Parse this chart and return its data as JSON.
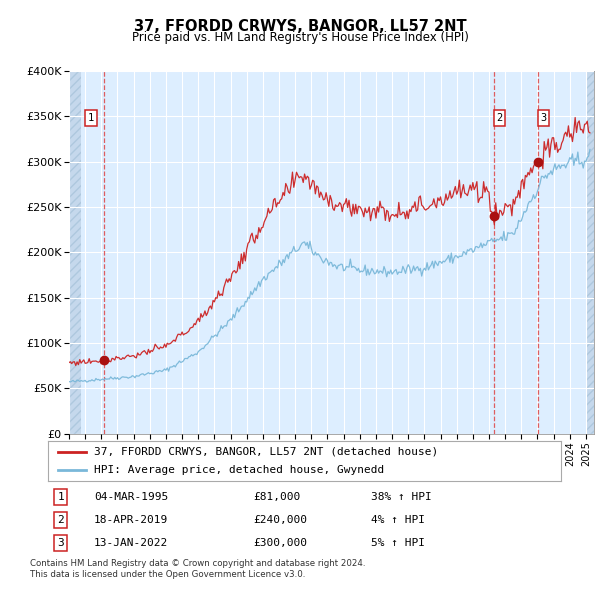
{
  "title": "37, FFORDD CRWYS, BANGOR, LL57 2NT",
  "subtitle": "Price paid vs. HM Land Registry's House Price Index (HPI)",
  "legend_line1": "37, FFORDD CRWYS, BANGOR, LL57 2NT (detached house)",
  "legend_line2": "HPI: Average price, detached house, Gwynedd",
  "footer1": "Contains HM Land Registry data © Crown copyright and database right 2024.",
  "footer2": "This data is licensed under the Open Government Licence v3.0.",
  "transactions": [
    {
      "num": 1,
      "date": "04-MAR-1995",
      "price": 81000,
      "pct": "38%",
      "dir": "↑"
    },
    {
      "num": 2,
      "date": "18-APR-2019",
      "price": 240000,
      "pct": "4%",
      "dir": "↑"
    },
    {
      "num": 3,
      "date": "13-JAN-2022",
      "price": 300000,
      "pct": "5%",
      "dir": "↑"
    }
  ],
  "transaction_dates_decimal": [
    1995.17,
    2019.29,
    2022.04
  ],
  "transaction_prices": [
    81000,
    240000,
    300000
  ],
  "hpi_line_color": "#7ab8d9",
  "price_line_color": "#cc2222",
  "dot_color": "#aa1111",
  "vline_color": "#dd4444",
  "bg_color": "#ddeeff",
  "grid_color": "#ffffff",
  "ylim": [
    0,
    400000
  ],
  "yticks": [
    0,
    50000,
    100000,
    150000,
    200000,
    250000,
    300000,
    350000,
    400000
  ],
  "ytick_labels": [
    "£0",
    "£50K",
    "£100K",
    "£150K",
    "£200K",
    "£250K",
    "£300K",
    "£350K",
    "£400K"
  ],
  "xlim_start": 1993.0,
  "xlim_end": 2025.5,
  "hpi_milestones": {
    "1993.0": 57000,
    "1995.0": 60000,
    "1997.0": 63000,
    "1999.0": 70000,
    "2001.0": 90000,
    "2003.0": 125000,
    "2005.0": 170000,
    "2007.5": 210000,
    "2008.5": 195000,
    "2009.5": 185000,
    "2011.0": 180000,
    "2013.0": 178000,
    "2015.0": 183000,
    "2017.0": 195000,
    "2019.0": 210000,
    "2020.5": 220000,
    "2021.5": 255000,
    "2022.5": 285000,
    "2023.5": 295000,
    "2025.3": 305000
  },
  "red_milestones": {
    "1993.0": 78000,
    "1995.17": 81000,
    "1997.0": 86000,
    "1999.0": 96000,
    "2001.0": 123000,
    "2003.0": 171000,
    "2005.0": 233000,
    "2007.5": 287000,
    "2008.5": 267000,
    "2009.5": 254000,
    "2011.0": 247000,
    "2013.0": 244000,
    "2015.0": 251000,
    "2017.0": 267000,
    "2019.0": 266000,
    "2019.29": 240000,
    "2020.5": 253000,
    "2021.5": 292000,
    "2022.04": 300000,
    "2022.5": 310000,
    "2023.5": 320000,
    "2024.5": 340000,
    "2025.3": 335000
  }
}
